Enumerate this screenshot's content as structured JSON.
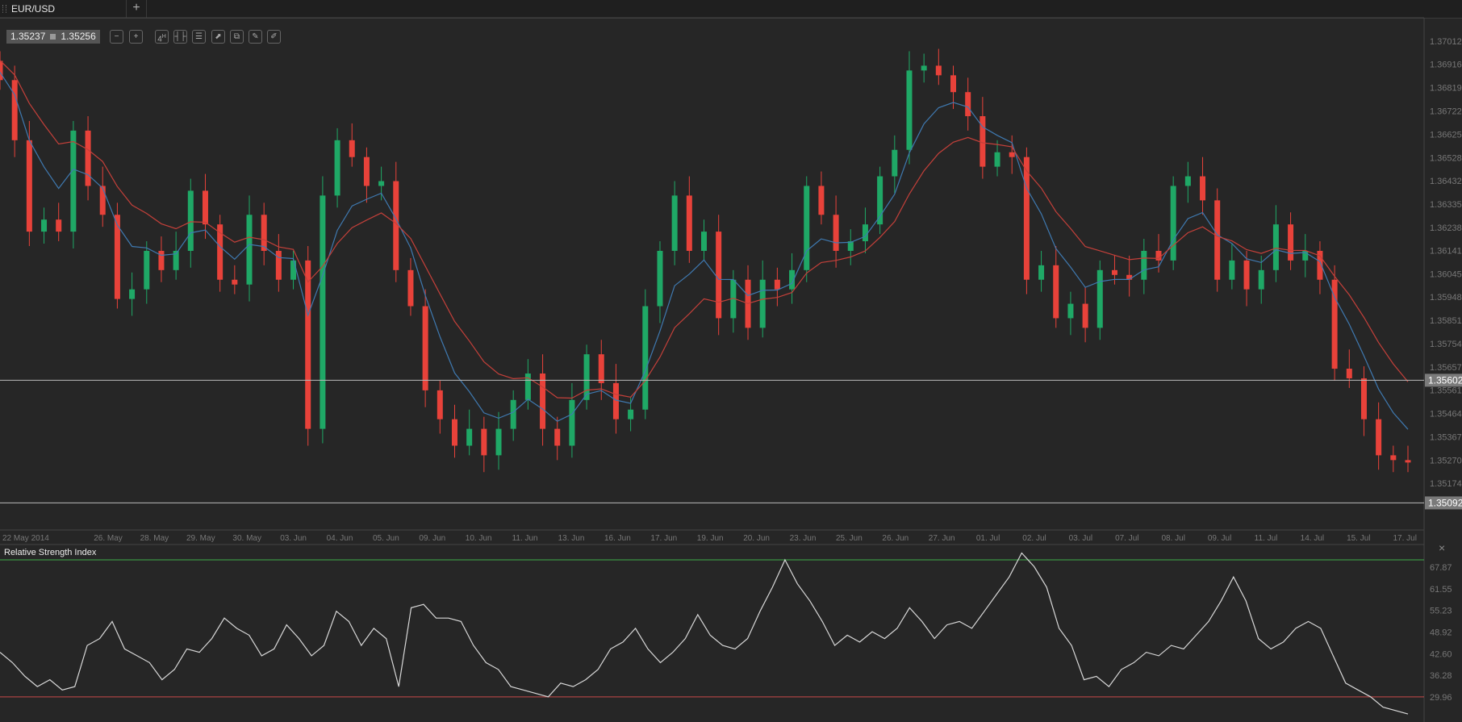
{
  "tab": {
    "label": "EUR/USD",
    "add_label": "+"
  },
  "quote": {
    "bid": "1.35237",
    "ask": "1.35256"
  },
  "toolbar": {
    "items": [
      {
        "icon": "zoom-out-icon",
        "glyph": "−"
      },
      {
        "icon": "zoom-in-icon",
        "glyph": "+"
      },
      {
        "icon": "timeframe-icon",
        "glyph": "4",
        "sup": "H"
      },
      {
        "icon": "candle-type-icon",
        "glyph": "┤├"
      },
      {
        "icon": "indicators-icon",
        "glyph": "☰"
      },
      {
        "icon": "chart-template-icon",
        "glyph": "⬈"
      },
      {
        "icon": "copy-icon",
        "glyph": "⧉"
      },
      {
        "icon": "edit-icon",
        "glyph": "✎"
      },
      {
        "icon": "draw-icon",
        "glyph": "✐"
      }
    ]
  },
  "colors": {
    "bg": "#262626",
    "up": "#1fa866",
    "down": "#e8423a",
    "ma_fast": "#3f79b0",
    "ma_slow": "#c4403a",
    "rsi": "#d8d8d8",
    "level_high": "#3fae4a",
    "level_low": "#c84a4a"
  },
  "chart_data": {
    "type": "candlestick",
    "symbol": "EUR/USD",
    "timeframe": "4H",
    "ylim": [
      1.35,
      1.3712
    ],
    "y_ticks": [
      "1.37012",
      "1.36916",
      "1.36819",
      "1.36722",
      "1.36625",
      "1.36528",
      "1.36432",
      "1.36335",
      "1.36238",
      "1.36141",
      "1.36045",
      "1.35948",
      "1.35851",
      "1.35754",
      "1.35657",
      "1.35561",
      "1.35464",
      "1.35367",
      "1.35270",
      "1.35174"
    ],
    "x_labels": [
      "22 May 2014",
      "26. May",
      "28. May",
      "29. May",
      "30. May",
      "03. Jun",
      "04. Jun",
      "05. Jun",
      "09. Jun",
      "10. Jun",
      "11. Jun",
      "13. Jun",
      "16. Jun",
      "17. Jun",
      "19. Jun",
      "20. Jun",
      "23. Jun",
      "25. Jun",
      "26. Jun",
      "27. Jun",
      "01. Jul",
      "02. Jul",
      "03. Jul",
      "07. Jul",
      "08. Jul",
      "09. Jul",
      "11. Jul",
      "14. Jul",
      "15. Jul",
      "17. Jul"
    ],
    "closes": [
      1.3685,
      1.366,
      1.3622,
      1.3627,
      1.3622,
      1.3664,
      1.3641,
      1.3629,
      1.3594,
      1.3598,
      1.3614,
      1.3606,
      1.3614,
      1.3639,
      1.3625,
      1.3602,
      1.36,
      1.3629,
      1.3614,
      1.3602,
      1.361,
      1.354,
      1.3637,
      1.366,
      1.3653,
      1.3641,
      1.3643,
      1.3606,
      1.3591,
      1.3556,
      1.3544,
      1.3533,
      1.354,
      1.3529,
      1.354,
      1.3552,
      1.3563,
      1.354,
      1.3533,
      1.3552,
      1.3571,
      1.3559,
      1.3544,
      1.3548,
      1.3591,
      1.3614,
      1.3637,
      1.3614,
      1.3622,
      1.3586,
      1.3602,
      1.3582,
      1.3602,
      1.3598,
      1.3606,
      1.3641,
      1.3629,
      1.3614,
      1.3618,
      1.3625,
      1.3645,
      1.3656,
      1.3689,
      1.3691,
      1.3687,
      1.368,
      1.367,
      1.3649,
      1.3655,
      1.3653,
      1.3602,
      1.3608,
      1.3586,
      1.3592,
      1.3582,
      1.3606,
      1.3604,
      1.3602,
      1.3614,
      1.361,
      1.3641,
      1.3645,
      1.3635,
      1.3602,
      1.361,
      1.3598,
      1.3606,
      1.3625,
      1.361,
      1.3614,
      1.3602,
      1.3565,
      1.3561,
      1.3544,
      1.3529,
      1.3527,
      1.3526
    ],
    "moving_averages": [
      {
        "name": "fast",
        "period": 5
      },
      {
        "name": "slow",
        "period": 10
      }
    ],
    "price_lines": [
      {
        "value": 1.35602,
        "label": "1.35602"
      },
      {
        "value": 1.35092,
        "label": "1.35092"
      }
    ],
    "rsi": {
      "title": "Relative Strength Index",
      "ylim": [
        25,
        72
      ],
      "y_ticks": [
        "67.87",
        "61.55",
        "55.23",
        "48.92",
        "42.60",
        "36.28",
        "29.96"
      ],
      "levels": [
        70,
        30
      ],
      "values": [
        43,
        40,
        36,
        33,
        35,
        32,
        33,
        45,
        47,
        52,
        44,
        42,
        40,
        35,
        38,
        44,
        43,
        47,
        53,
        50,
        48,
        42,
        44,
        51,
        47,
        42,
        45,
        55,
        52,
        45,
        50,
        47,
        33,
        56,
        57,
        53,
        53,
        52,
        45,
        40,
        38,
        33,
        32,
        31,
        30,
        34,
        33,
        35,
        38,
        44,
        46,
        50,
        44,
        40,
        43,
        47,
        54,
        48,
        45,
        44,
        47,
        55,
        62,
        70,
        63,
        58,
        52,
        45,
        48,
        46,
        49,
        47,
        50,
        56,
        52,
        47,
        51,
        52,
        50,
        55,
        60,
        65,
        72,
        68,
        62,
        50,
        45,
        35,
        36,
        33,
        38,
        40,
        43,
        42,
        45,
        44,
        48,
        52,
        58,
        65,
        58,
        47,
        44,
        46,
        50,
        52,
        50,
        42,
        34,
        32,
        30,
        27,
        26,
        25
      ],
      "close_label": "×"
    }
  }
}
